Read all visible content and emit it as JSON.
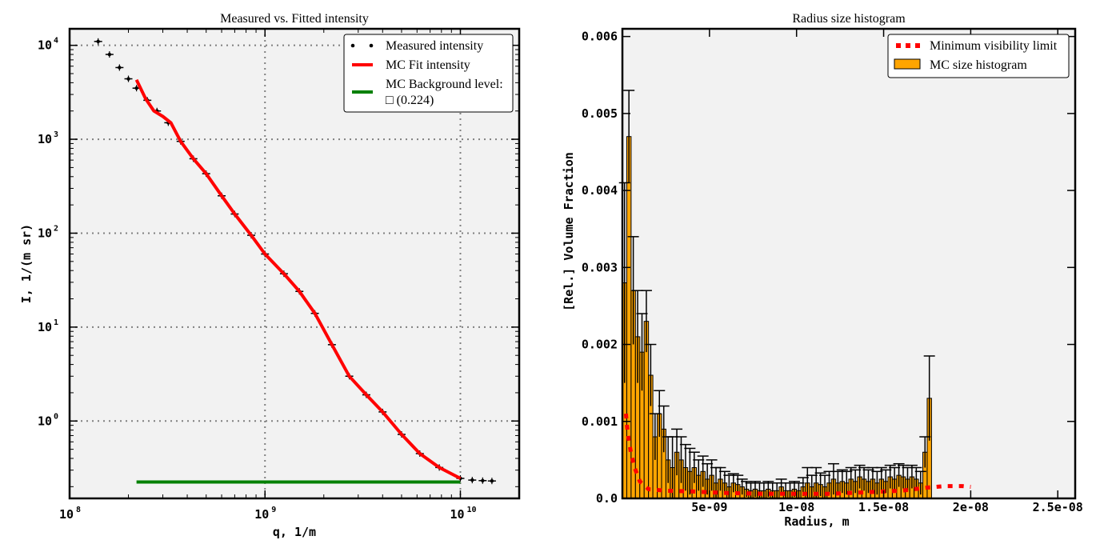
{
  "colors": {
    "plot_bg": "#f2f2f2",
    "measured": "#000000",
    "fit": "#ff0000",
    "background_line": "#008000",
    "bar_fill": "#ffa500",
    "bar_edge": "#000000",
    "vis_limit": "#ff0000",
    "grid": "#808080"
  },
  "chart_data": [
    {
      "type": "scatter",
      "title": "Measured vs. Fitted intensity",
      "xlabel": "q, 1/m",
      "ylabel": "I, 1/(m sr)",
      "xscale": "log",
      "yscale": "log",
      "xlim": [
        100000000.0,
        20000000000.0
      ],
      "ylim": [
        0.15,
        15000
      ],
      "grid": true,
      "legend_position": "top-right",
      "x_ticks": [
        {
          "value": 100000000.0,
          "base": "10",
          "exp": "8"
        },
        {
          "value": 1000000000.0,
          "base": "10",
          "exp": "9"
        },
        {
          "value": 10000000000.0,
          "base": "10",
          "exp": "10"
        }
      ],
      "y_ticks": [
        {
          "value": 1,
          "base": "10",
          "exp": "0"
        },
        {
          "value": 10,
          "base": "10",
          "exp": "1"
        },
        {
          "value": 100,
          "base": "10",
          "exp": "2"
        },
        {
          "value": 1000,
          "base": "10",
          "exp": "3"
        },
        {
          "value": 10000,
          "base": "10",
          "exp": "4"
        }
      ],
      "series": [
        {
          "name": "Measured intensity",
          "kind": "points",
          "x": [
            140000000.0,
            160000000.0,
            180000000.0,
            200000000.0,
            220000000.0,
            250000000.0,
            280000000.0,
            320000000.0,
            370000000.0,
            430000000.0,
            500000000.0,
            600000000.0,
            700000000.0,
            850000000.0,
            1000000000.0,
            1250000000.0,
            1500000000.0,
            1800000000.0,
            2200000000.0,
            2700000000.0,
            3300000000.0,
            4000000000.0,
            5000000000.0,
            6200000000.0,
            7800000000.0,
            10000000000.0,
            11500000000.0,
            13000000000.0,
            14500000000.0
          ],
          "y": [
            11000,
            8000,
            5800,
            4400,
            3500,
            2600,
            2000,
            1500,
            950,
            620,
            430,
            250,
            160,
            95,
            60,
            37,
            24,
            14,
            6.5,
            3.0,
            1.9,
            1.25,
            0.72,
            0.45,
            0.32,
            0.245,
            0.235,
            0.232,
            0.23
          ]
        },
        {
          "name": "MC Fit intensity",
          "kind": "line",
          "x": [
            220000000.0,
            245000000.0,
            270000000.0,
            300000000.0,
            330000000.0,
            370000000.0,
            430000000.0,
            500000000.0,
            600000000.0,
            700000000.0,
            850000000.0,
            1000000000.0,
            1250000000.0,
            1500000000.0,
            1800000000.0,
            2200000000.0,
            2700000000.0,
            3300000000.0,
            4000000000.0,
            5000000000.0,
            6200000000.0,
            7800000000.0,
            10000000000.0
          ],
          "y": [
            4300,
            2700,
            2000,
            1750,
            1500,
            950,
            620,
            430,
            250,
            160,
            95,
            60,
            37,
            24,
            14,
            6.5,
            3.0,
            1.9,
            1.25,
            0.72,
            0.45,
            0.32,
            0.245
          ]
        },
        {
          "name": "MC Background level:",
          "name_line2": "□ (0.224)",
          "kind": "line",
          "x": [
            220000000.0,
            10000000000.0
          ],
          "y": [
            0.224,
            0.224
          ]
        }
      ]
    },
    {
      "type": "bar",
      "title": "Radius size histogram",
      "xlabel": "Radius, m",
      "ylabel": "[Rel.] Volume Fraction",
      "xlim": [
        0,
        2.6e-08
      ],
      "ylim": [
        0,
        0.0061
      ],
      "grid": false,
      "legend_position": "top-right",
      "x_tick_labels": [
        {
          "value": 5e-09,
          "label": "5e-09"
        },
        {
          "value": 1e-08,
          "label": "1e-08"
        },
        {
          "value": 1.5e-08,
          "label": "1.5e-08"
        },
        {
          "value": 2e-08,
          "label": "2e-08"
        },
        {
          "value": 2.5e-08,
          "label": "2.5e-08"
        }
      ],
      "y_tick_labels": [
        {
          "value": 0.0,
          "label": "0.0"
        },
        {
          "value": 0.001,
          "label": "0.001"
        },
        {
          "value": 0.002,
          "label": "0.002"
        },
        {
          "value": 0.003,
          "label": "0.003"
        },
        {
          "value": 0.004,
          "label": "0.004"
        },
        {
          "value": 0.005,
          "label": "0.005"
        },
        {
          "value": 0.006,
          "label": "0.006"
        }
      ],
      "bin_width": 2.5e-10,
      "bin_start": 0,
      "series": [
        {
          "name": "MC size histogram",
          "values": [
            0.0028,
            0.0047,
            0.0027,
            0.0021,
            0.0019,
            0.0023,
            0.0016,
            0.0008,
            0.0011,
            0.0009,
            0.0005,
            0.0004,
            0.0006,
            0.0005,
            0.0004,
            0.00035,
            0.0004,
            0.0003,
            0.00035,
            0.00025,
            0.0003,
            0.0002,
            0.00025,
            0.0002,
            0.00015,
            0.0002,
            0.00018,
            0.00015,
            0.00012,
            0.0001,
            0.00012,
            0.0001,
            0.0001,
            0.00012,
            0.0001,
            0.0001,
            0.00015,
            0.0001,
            0.0001,
            0.00012,
            0.0001,
            0.00015,
            0.0002,
            0.00015,
            0.0002,
            0.00018,
            0.00015,
            0.0002,
            0.00025,
            0.0002,
            0.00022,
            0.0002,
            0.00025,
            0.00022,
            0.00028,
            0.00025,
            0.00022,
            0.00025,
            0.0002,
            0.00025,
            0.00022,
            0.00028,
            0.00025,
            0.0003,
            0.00028,
            0.00025,
            0.00028,
            0.00025,
            0.0002,
            0.0006,
            0.0013
          ],
          "errors": [
            0.0013,
            0.0006,
            0.0007,
            0.0006,
            0.0005,
            0.0004,
            0.0004,
            0.0003,
            0.0003,
            0.0003,
            0.0003,
            0.0004,
            0.0003,
            0.0003,
            0.0003,
            0.0003,
            0.0002,
            0.0002,
            0.0002,
            0.0002,
            0.0002,
            0.0002,
            0.00015,
            0.00015,
            0.00015,
            0.00012,
            0.00012,
            0.0001,
            0.0001,
            0.0001,
            0.0001,
            0.0001,
            0.0001,
            0.0001,
            0.0001,
            0.0001,
            0.0001,
            0.0001,
            0.0001,
            0.0001,
            0.0001,
            0.00012,
            0.0002,
            0.00015,
            0.0002,
            0.00015,
            0.00015,
            0.00015,
            0.0002,
            0.00015,
            0.00015,
            0.00015,
            0.00015,
            0.00015,
            0.00015,
            0.00015,
            0.00015,
            0.00015,
            0.00015,
            0.00015,
            0.00015,
            0.00015,
            0.00015,
            0.00015,
            0.00015,
            0.00015,
            0.00015,
            0.00015,
            0.00015,
            0.0002,
            0.00055
          ]
        },
        {
          "name": "Minimum visibility limit",
          "kind": "dashed-line",
          "x": [
            2e-10,
            2.6e-10,
            3.5e-10,
            5e-10,
            7e-10,
            1e-09,
            1.5e-09,
            2.5e-09,
            4e-09,
            6e-09,
            8e-09,
            1e-08,
            1.2e-08,
            1.4e-08,
            1.6e-08,
            1.75e-08,
            1.85e-08,
            1.95e-08,
            2e-08
          ],
          "y": [
            0.0011,
            0.00095,
            0.00078,
            0.00058,
            0.0004,
            0.00022,
            0.00012,
            0.0001,
            9e-05,
            7e-05,
            6e-05,
            6e-05,
            6e-05,
            8e-05,
            0.0001,
            0.00014,
            0.00016,
            0.00016,
            0.00015
          ]
        }
      ]
    }
  ]
}
